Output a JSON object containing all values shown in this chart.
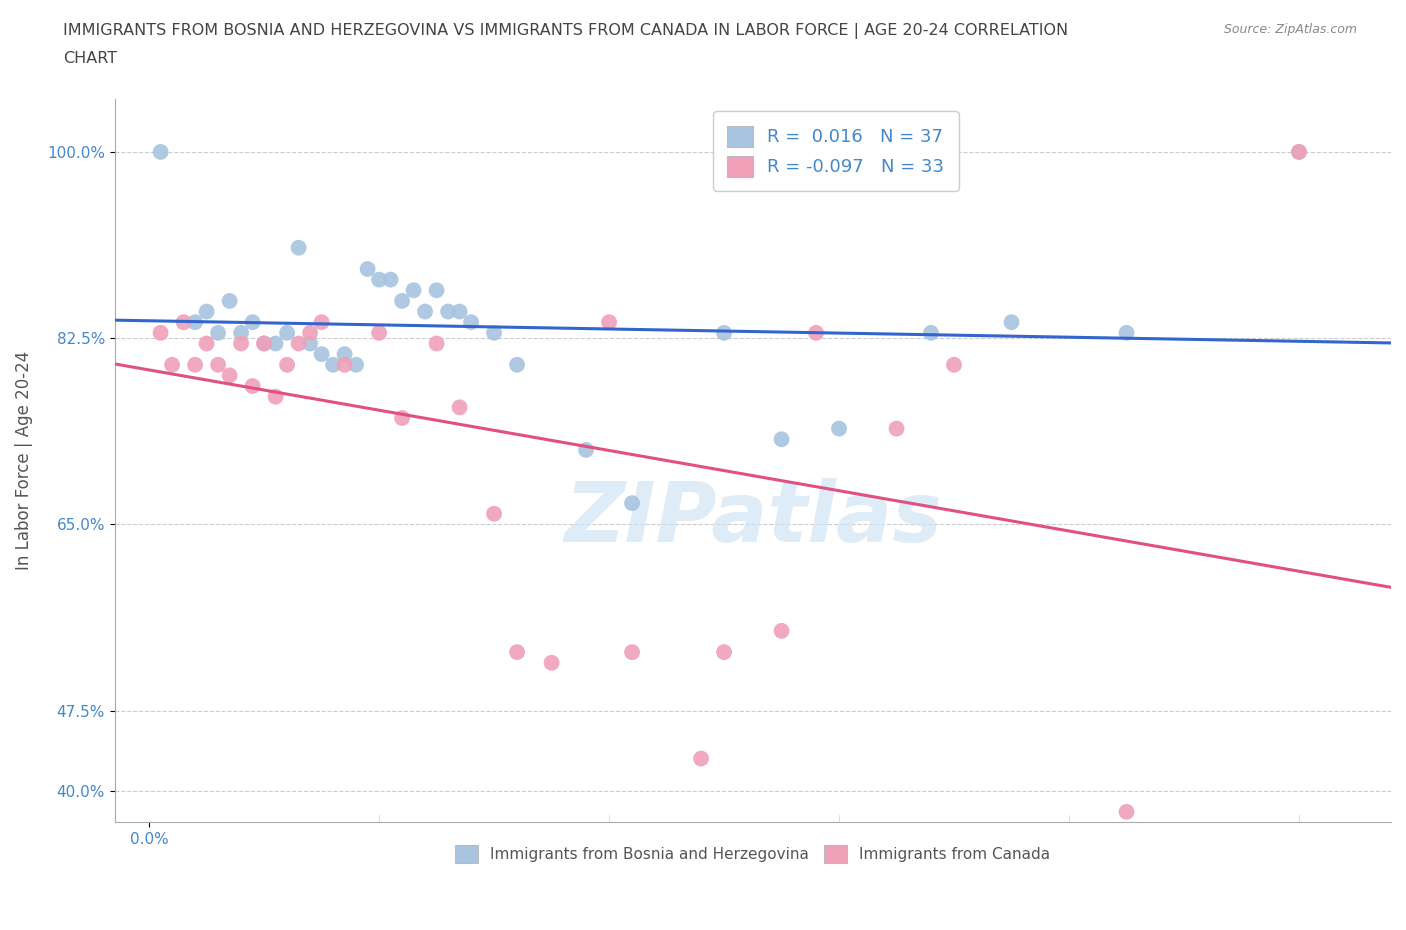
{
  "title_line1": "IMMIGRANTS FROM BOSNIA AND HERZEGOVINA VS IMMIGRANTS FROM CANADA IN LABOR FORCE | AGE 20-24 CORRELATION",
  "title_line2": "CHART",
  "source": "Source: ZipAtlas.com",
  "ylabel": "In Labor Force | Age 20-24",
  "r_bosnia": 0.016,
  "n_bosnia": 37,
  "r_canada": -0.097,
  "n_canada": 33,
  "bosnia_color": "#a8c4e0",
  "canada_color": "#f0a0b8",
  "bosnia_line_color": "#3366cc",
  "canada_line_color": "#e05080",
  "title_color": "#444444",
  "axis_label_color": "#555555",
  "tick_color": "#4488cc",
  "watermark_color": "#d0e4f4",
  "yticks": [
    40.0,
    47.5,
    65.0,
    82.5,
    100.0
  ],
  "ylim": [
    37.0,
    105.0
  ],
  "xlim": [
    -0.003,
    0.108
  ],
  "background_color": "#ffffff",
  "grid_color": "#cccccc",
  "bosnia_x": [
    0.001,
    0.013,
    0.019,
    0.02,
    0.021,
    0.023,
    0.004,
    0.005,
    0.006,
    0.007,
    0.008,
    0.009,
    0.01,
    0.011,
    0.012,
    0.014,
    0.015,
    0.016,
    0.017,
    0.018,
    0.022,
    0.024,
    0.025,
    0.026,
    0.027,
    0.028,
    0.03,
    0.032,
    0.038,
    0.042,
    0.05,
    0.055,
    0.06,
    0.068,
    0.075,
    0.085,
    0.1
  ],
  "bosnia_y": [
    100.0,
    91.0,
    89.0,
    88.0,
    88.0,
    87.0,
    84.0,
    85.0,
    83.0,
    86.0,
    83.0,
    84.0,
    82.0,
    82.0,
    83.0,
    82.0,
    81.0,
    80.0,
    81.0,
    80.0,
    86.0,
    85.0,
    87.0,
    85.0,
    85.0,
    84.0,
    83.0,
    80.0,
    72.0,
    67.0,
    83.0,
    73.0,
    74.0,
    83.0,
    84.0,
    83.0,
    100.0
  ],
  "canada_x": [
    0.001,
    0.002,
    0.003,
    0.004,
    0.005,
    0.006,
    0.007,
    0.008,
    0.009,
    0.01,
    0.011,
    0.012,
    0.013,
    0.014,
    0.015,
    0.017,
    0.02,
    0.022,
    0.025,
    0.027,
    0.03,
    0.032,
    0.035,
    0.04,
    0.042,
    0.048,
    0.05,
    0.055,
    0.058,
    0.065,
    0.07,
    0.085,
    0.1
  ],
  "canada_y": [
    83.0,
    80.0,
    84.0,
    80.0,
    82.0,
    80.0,
    79.0,
    82.0,
    78.0,
    82.0,
    77.0,
    80.0,
    82.0,
    83.0,
    84.0,
    80.0,
    83.0,
    75.0,
    82.0,
    76.0,
    66.0,
    53.0,
    52.0,
    84.0,
    53.0,
    43.0,
    53.0,
    55.0,
    83.0,
    74.0,
    80.0,
    38.0,
    100.0
  ],
  "legend_bosnia_label": "Immigrants from Bosnia and Herzegovina",
  "legend_canada_label": "Immigrants from Canada"
}
